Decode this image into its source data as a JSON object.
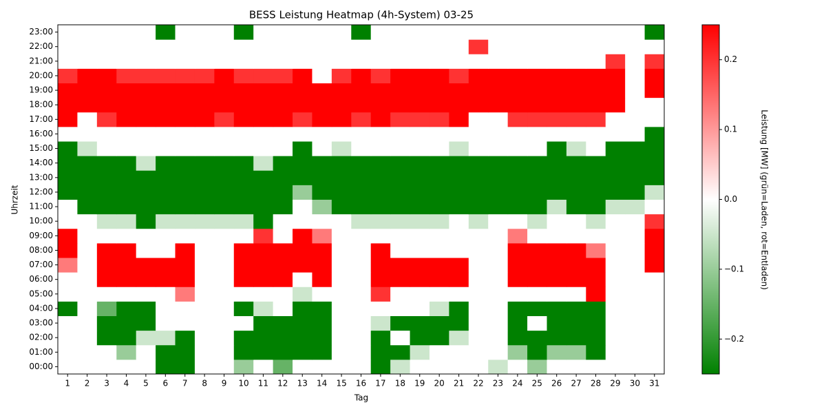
{
  "chart_data": {
    "type": "heatmap",
    "title": "BESS Leistung Heatmap (4h-System) 03-25",
    "xlabel": "Tag",
    "ylabel": "Uhrzeit",
    "x": [
      1,
      2,
      3,
      4,
      5,
      6,
      7,
      8,
      9,
      10,
      11,
      12,
      13,
      14,
      15,
      16,
      17,
      18,
      19,
      20,
      21,
      22,
      23,
      24,
      25,
      26,
      27,
      28,
      29,
      30,
      31
    ],
    "y": [
      "00:00",
      "01:00",
      "02:00",
      "03:00",
      "04:00",
      "05:00",
      "06:00",
      "07:00",
      "08:00",
      "09:00",
      "10:00",
      "11:00",
      "12:00",
      "13:00",
      "14:00",
      "15:00",
      "16:00",
      "17:00",
      "18:00",
      "19:00",
      "20:00",
      "21:00",
      "22:00",
      "23:00"
    ],
    "z": [
      [
        0,
        0,
        0,
        0,
        0,
        -0.25,
        -0.25,
        0,
        0,
        -0.1,
        0,
        -0.15,
        0,
        0,
        0,
        0,
        -0.25,
        -0.05,
        0,
        0,
        0,
        0,
        -0.05,
        0,
        -0.1,
        0,
        0,
        0,
        0,
        0,
        0
      ],
      [
        0,
        0,
        0,
        -0.1,
        0,
        -0.25,
        -0.25,
        0,
        0,
        -0.25,
        -0.25,
        -0.25,
        -0.25,
        -0.25,
        0,
        0,
        -0.25,
        -0.25,
        -0.05,
        0,
        0,
        0,
        0,
        -0.1,
        -0.25,
        -0.1,
        -0.1,
        -0.25,
        0,
        0,
        0
      ],
      [
        0,
        0,
        -0.25,
        -0.25,
        -0.05,
        -0.05,
        -0.25,
        0,
        0,
        -0.25,
        -0.25,
        -0.25,
        -0.25,
        -0.25,
        0,
        0,
        -0.25,
        0,
        -0.25,
        -0.25,
        -0.05,
        0,
        0,
        -0.25,
        -0.25,
        -0.25,
        -0.25,
        -0.25,
        0,
        0,
        0
      ],
      [
        0,
        0,
        -0.25,
        -0.25,
        -0.25,
        0,
        0,
        0,
        0,
        0,
        -0.25,
        -0.25,
        -0.25,
        -0.25,
        0,
        0,
        -0.05,
        -0.25,
        -0.25,
        -0.25,
        -0.25,
        0,
        0,
        -0.25,
        0,
        -0.25,
        -0.25,
        -0.25,
        0,
        0,
        0
      ],
      [
        -0.25,
        0,
        -0.15,
        -0.25,
        -0.25,
        0,
        0,
        0,
        0,
        -0.25,
        -0.05,
        0,
        -0.25,
        -0.25,
        0,
        0,
        0,
        0,
        0,
        -0.05,
        -0.25,
        0,
        0,
        -0.25,
        -0.25,
        -0.25,
        -0.25,
        -0.25,
        0,
        0,
        0
      ],
      [
        0,
        0,
        0,
        0,
        0,
        0,
        0.13,
        0,
        0,
        0,
        0,
        0,
        -0.05,
        0,
        0,
        0,
        0.2,
        0,
        0,
        0,
        0,
        0,
        0,
        0,
        0,
        0,
        0,
        0.25,
        0,
        0,
        0
      ],
      [
        0,
        0,
        0.25,
        0.25,
        0.25,
        0.25,
        0.25,
        0,
        0,
        0.25,
        0.25,
        0.25,
        0,
        0.25,
        0,
        0,
        0.25,
        0.25,
        0.25,
        0.25,
        0.25,
        0,
        0,
        0.25,
        0.25,
        0.25,
        0.25,
        0.25,
        0,
        0,
        0
      ],
      [
        0.13,
        0,
        0.25,
        0.25,
        0.25,
        0.25,
        0.25,
        0,
        0,
        0.25,
        0.25,
        0.25,
        0.25,
        0.25,
        0,
        0,
        0.25,
        0.25,
        0.25,
        0.25,
        0.25,
        0,
        0,
        0.25,
        0.25,
        0.25,
        0.25,
        0.25,
        0,
        0,
        0.25
      ],
      [
        0.25,
        0,
        0.25,
        0.25,
        0,
        0,
        0.25,
        0,
        0,
        0.25,
        0.25,
        0.25,
        0.25,
        0.25,
        0,
        0,
        0.25,
        0,
        0,
        0,
        0,
        0,
        0,
        0.25,
        0.25,
        0.25,
        0.25,
        0.13,
        0,
        0,
        0.25
      ],
      [
        0.25,
        0,
        0,
        0,
        0,
        0,
        0,
        0,
        0,
        0,
        0.2,
        0,
        0.25,
        0.13,
        0,
        0,
        0,
        0,
        0,
        0,
        0,
        0,
        0,
        0.13,
        0,
        0,
        0,
        0,
        0,
        0,
        0.25
      ],
      [
        0,
        0,
        -0.05,
        -0.05,
        -0.25,
        -0.05,
        -0.05,
        -0.05,
        -0.05,
        -0.05,
        -0.25,
        0,
        0,
        0,
        0,
        -0.05,
        -0.05,
        -0.05,
        -0.05,
        -0.05,
        0,
        -0.05,
        0,
        0,
        -0.05,
        0,
        0,
        -0.05,
        0,
        0,
        0.2
      ],
      [
        0,
        -0.25,
        -0.25,
        -0.25,
        -0.25,
        -0.25,
        -0.25,
        -0.25,
        -0.25,
        -0.25,
        -0.25,
        -0.25,
        0,
        -0.1,
        -0.25,
        -0.25,
        -0.25,
        -0.25,
        -0.25,
        -0.25,
        -0.25,
        -0.25,
        -0.25,
        -0.25,
        -0.25,
        -0.05,
        -0.25,
        -0.25,
        -0.05,
        -0.05,
        0
      ],
      [
        -0.25,
        -0.25,
        -0.25,
        -0.25,
        -0.25,
        -0.25,
        -0.25,
        -0.25,
        -0.25,
        -0.25,
        -0.25,
        -0.25,
        -0.1,
        -0.25,
        -0.25,
        -0.25,
        -0.25,
        -0.25,
        -0.25,
        -0.25,
        -0.25,
        -0.25,
        -0.25,
        -0.25,
        -0.25,
        -0.25,
        -0.25,
        -0.25,
        -0.25,
        -0.25,
        -0.05
      ],
      [
        -0.25,
        -0.25,
        -0.25,
        -0.25,
        -0.25,
        -0.25,
        -0.25,
        -0.25,
        -0.25,
        -0.25,
        -0.25,
        -0.25,
        -0.25,
        -0.25,
        -0.25,
        -0.25,
        -0.25,
        -0.25,
        -0.25,
        -0.25,
        -0.25,
        -0.25,
        -0.25,
        -0.25,
        -0.25,
        -0.25,
        -0.25,
        -0.25,
        -0.25,
        -0.25,
        -0.25
      ],
      [
        -0.25,
        -0.25,
        -0.25,
        -0.25,
        -0.05,
        -0.25,
        -0.25,
        -0.25,
        -0.25,
        -0.25,
        -0.05,
        -0.25,
        -0.25,
        -0.25,
        -0.25,
        -0.25,
        -0.25,
        -0.25,
        -0.25,
        -0.25,
        -0.25,
        -0.25,
        -0.25,
        -0.25,
        -0.25,
        -0.25,
        -0.25,
        -0.25,
        -0.25,
        -0.25,
        -0.25
      ],
      [
        -0.25,
        -0.05,
        0,
        0,
        0,
        0,
        0,
        0,
        0,
        0,
        0,
        0,
        -0.25,
        0,
        -0.05,
        0,
        0,
        0,
        0,
        0,
        -0.05,
        0,
        0,
        0,
        0,
        -0.25,
        -0.05,
        0,
        -0.25,
        -0.25,
        -0.25
      ],
      [
        0,
        0,
        0,
        0,
        0,
        0,
        0,
        0,
        0,
        0,
        0,
        0,
        0,
        0,
        0,
        0,
        0,
        0,
        0,
        0,
        0,
        0,
        0,
        0,
        0,
        0,
        0,
        0,
        0,
        0,
        -0.25
      ],
      [
        0.25,
        0,
        0.2,
        0.25,
        0.25,
        0.25,
        0.25,
        0.25,
        0.2,
        0.25,
        0.25,
        0.25,
        0.2,
        0.25,
        0.25,
        0.2,
        0.25,
        0.2,
        0.2,
        0.2,
        0.25,
        0,
        0,
        0.2,
        0.2,
        0.2,
        0.2,
        0.2,
        0,
        0,
        0
      ],
      [
        0.25,
        0.25,
        0.25,
        0.25,
        0.25,
        0.25,
        0.25,
        0.25,
        0.25,
        0.25,
        0.25,
        0.25,
        0.25,
        0.25,
        0.25,
        0.25,
        0.25,
        0.25,
        0.25,
        0.25,
        0.25,
        0.25,
        0.25,
        0.25,
        0.25,
        0.25,
        0.25,
        0.25,
        0.25,
        0,
        0
      ],
      [
        0.25,
        0.25,
        0.25,
        0.25,
        0.25,
        0.25,
        0.25,
        0.25,
        0.25,
        0.25,
        0.25,
        0.25,
        0.25,
        0.25,
        0.25,
        0.25,
        0.25,
        0.25,
        0.25,
        0.25,
        0.25,
        0.25,
        0.25,
        0.25,
        0.25,
        0.25,
        0.25,
        0.25,
        0.25,
        0,
        0.25
      ],
      [
        0.2,
        0.25,
        0.25,
        0.2,
        0.2,
        0.2,
        0.2,
        0.2,
        0.25,
        0.2,
        0.2,
        0.2,
        0.25,
        0,
        0.2,
        0.25,
        0.2,
        0.25,
        0.25,
        0.25,
        0.2,
        0.25,
        0.25,
        0.25,
        0.25,
        0.25,
        0.25,
        0.25,
        0.25,
        0,
        0.25
      ],
      [
        0,
        0,
        0,
        0,
        0,
        0,
        0,
        0,
        0,
        0,
        0,
        0,
        0,
        0,
        0,
        0,
        0,
        0,
        0,
        0,
        0,
        0,
        0,
        0,
        0,
        0,
        0,
        0,
        0.2,
        0,
        0.2
      ],
      [
        0,
        0,
        0,
        0,
        0,
        0,
        0,
        0,
        0,
        0,
        0,
        0,
        0,
        0,
        0,
        0,
        0,
        0,
        0,
        0,
        0,
        0.2,
        0,
        0,
        0,
        0,
        0,
        0,
        0,
        0,
        0
      ],
      [
        0,
        0,
        0,
        0,
        0,
        -0.25,
        0,
        0,
        0,
        -0.25,
        0,
        0,
        0,
        0,
        0,
        -0.25,
        0,
        0,
        0,
        0,
        0,
        0,
        0,
        0,
        0,
        0,
        0,
        0,
        0,
        0,
        -0.25
      ]
    ],
    "colors": [
      "#008000",
      "#ffffff",
      "#ff0000"
    ],
    "colorbar": {
      "label": "Leistung [MW] (grün=Laden, rot=Entladen)",
      "lim": [
        -0.25,
        0.25
      ],
      "ticks": [
        {
          "value": -0.2,
          "label": "−0.2"
        },
        {
          "value": -0.1,
          "label": "−0.1"
        },
        {
          "value": 0,
          "label": "0.0"
        },
        {
          "value": 0.1,
          "label": "0.1"
        },
        {
          "value": 0.2,
          "label": "0.2"
        }
      ]
    }
  }
}
